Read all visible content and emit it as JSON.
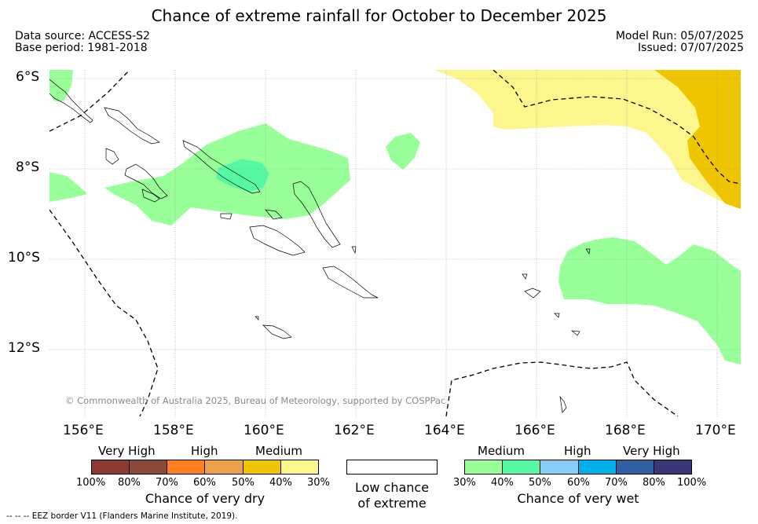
{
  "title": "Chance of extreme rainfall for October to December 2025",
  "data_source": "Data source: ACCESS-S2",
  "base_period": "Base period: 1981-2018",
  "model_run": "Model Run: 05/07/2025",
  "issued": "Issued: 07/07/2025",
  "lat_labels": [
    "6°S",
    "8°S",
    "10°S",
    "12°S"
  ],
  "lon_labels": [
    "156°E",
    "158°E",
    "160°E",
    "162°E",
    "164°E",
    "166°E",
    "168°E",
    "170°E"
  ],
  "copyright": "© Commonwealth of Australia 2025, Bureau of Meteorology, supported by COSPPac",
  "dry_legend": {
    "categories": [
      "Very High",
      "High",
      "Medium"
    ],
    "ticks": [
      "100%",
      "80%",
      "70%",
      "60%",
      "50%",
      "40%",
      "30%"
    ],
    "caption": "Chance of very dry",
    "colors": [
      "#8b3a32",
      "#8b4a38",
      "#ff7f1e",
      "#eda14a",
      "#efc500",
      "#fdf68d"
    ]
  },
  "low_legend": {
    "caption_line1": "Low chance",
    "caption_line2": "of extreme",
    "color": "#ffffff"
  },
  "wet_legend": {
    "categories": [
      "Medium",
      "High",
      "Very High"
    ],
    "ticks": [
      "30%",
      "40%",
      "50%",
      "60%",
      "70%",
      "80%",
      "100%"
    ],
    "caption": "Chance of very wet",
    "colors": [
      "#99ff99",
      "#55f9a4",
      "#88cdf8",
      "#00b0eb",
      "#315fa4",
      "#3b3677"
    ]
  },
  "footer": "--  --  -- EEZ border V11 (Flanders Marine Institute, 2019)."
}
